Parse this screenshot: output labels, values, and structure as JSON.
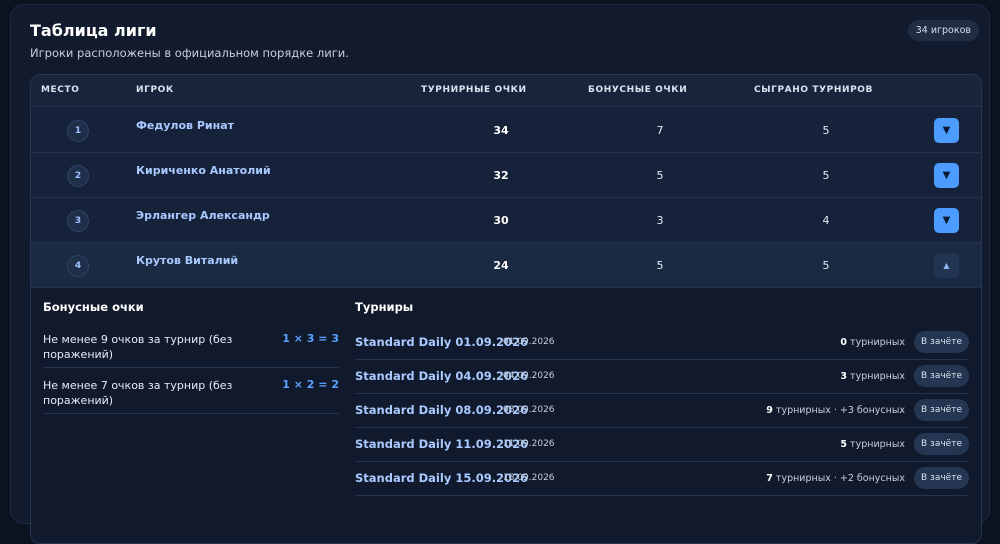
{
  "header": {
    "title": "Таблица лиги",
    "subtitle": "Игроки расположены в официальном порядке лиги.",
    "badge": "34 игроков"
  },
  "columns": {
    "place": "МЕСТО",
    "player": "ИГРОК",
    "tournament_points": "ТУРНИРНЫЕ ОЧКИ",
    "bonus_points": "БОНУСНЫЕ ОЧКИ",
    "played": "СЫГРАНО ТУРНИРОВ"
  },
  "rows": [
    {
      "rank": "1",
      "name": "Федулов Ринат",
      "tp": "34",
      "bp": "7",
      "played": "5",
      "toggle": "▼"
    },
    {
      "rank": "2",
      "name": "Кириченко Анатолий",
      "tp": "32",
      "bp": "5",
      "played": "5",
      "toggle": "▼"
    },
    {
      "rank": "3",
      "name": "Эрлангер Александр",
      "tp": "30",
      "bp": "3",
      "played": "4",
      "toggle": "▼"
    },
    {
      "rank": "4",
      "name": "Крутов Виталий",
      "tp": "24",
      "bp": "5",
      "played": "5",
      "toggle": "▲"
    }
  ],
  "details": {
    "bonus_heading": "Бонусные очки",
    "bonus_items": [
      {
        "text": "Не менее 9 очков за турнир (без поражений)",
        "formula": "1 × 3 = 3"
      },
      {
        "text": "Не менее 7 очков за турнир (без поражений)",
        "formula": "1 × 2 = 2"
      }
    ],
    "tournaments_heading": "Турниры",
    "tournaments": [
      {
        "name": "Standard Daily 01.09.2026",
        "date": "01.09.2026",
        "points": "0",
        "rest": " турнирных",
        "status": "В зачёте"
      },
      {
        "name": "Standard Daily 04.09.2026",
        "date": "04.09.2026",
        "points": "3",
        "rest": " турнирных",
        "status": "В зачёте"
      },
      {
        "name": "Standard Daily 08.09.2026",
        "date": "08.09.2026",
        "points": "9",
        "rest": " турнирных · +3 бонусных",
        "status": "В зачёте"
      },
      {
        "name": "Standard Daily 11.09.2026",
        "date": "11.09.2026",
        "points": "5",
        "rest": " турнирных",
        "status": "В зачёте"
      },
      {
        "name": "Standard Daily 15.09.2026",
        "date": "15.09.2026",
        "points": "7",
        "rest": " турнирных · +2 бонусных",
        "status": "В зачёте"
      }
    ]
  },
  "colors": {
    "background": "#0b1220",
    "accent": "#4c9bff",
    "link": "#a9c9ff"
  }
}
